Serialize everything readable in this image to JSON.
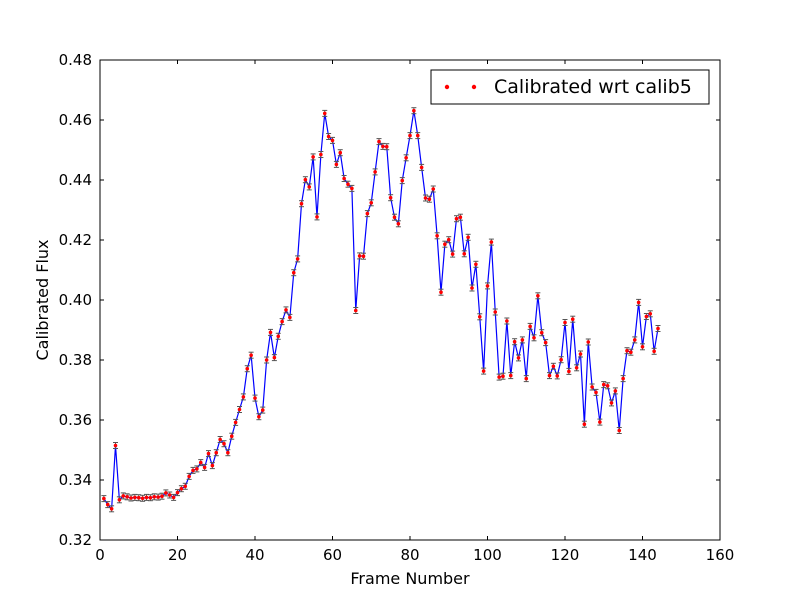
{
  "chart_data": {
    "type": "line",
    "title": "",
    "xlabel": "Frame Number",
    "ylabel": "Calibrated Flux",
    "xlim": [
      0,
      160
    ],
    "ylim": [
      0.32,
      0.48
    ],
    "xticks": [
      "0",
      "20",
      "40",
      "60",
      "80",
      "100",
      "120",
      "140",
      "160"
    ],
    "yticks": [
      "0.32",
      "0.34",
      "0.36",
      "0.38",
      "0.40",
      "0.42",
      "0.44",
      "0.46",
      "0.48"
    ],
    "grid": false,
    "legend_position": "top-right",
    "line_color": "#0000ff",
    "marker_color": "#ff0000",
    "errorbar_color": "#555555",
    "error_halfwidth": 0.001,
    "series": [
      {
        "name": "Calibrated wrt calib5",
        "x": [
          1,
          2,
          3,
          4,
          5,
          6,
          7,
          8,
          9,
          10,
          11,
          12,
          13,
          14,
          15,
          16,
          17,
          18,
          19,
          20,
          21,
          22,
          23,
          24,
          25,
          26,
          27,
          28,
          29,
          30,
          31,
          32,
          33,
          34,
          35,
          36,
          37,
          38,
          39,
          40,
          41,
          42,
          43,
          44,
          45,
          46,
          47,
          48,
          49,
          50,
          51,
          52,
          53,
          54,
          55,
          56,
          57,
          58,
          59,
          60,
          61,
          62,
          63,
          64,
          65,
          66,
          67,
          68,
          69,
          70,
          71,
          72,
          73,
          74,
          75,
          76,
          77,
          78,
          79,
          80,
          81,
          82,
          83,
          84,
          85,
          86,
          87,
          88,
          89,
          90,
          91,
          92,
          93,
          94,
          95,
          96,
          97,
          98,
          99,
          100,
          101,
          102,
          103,
          104,
          105,
          106,
          107,
          108,
          109,
          110,
          111,
          112,
          113,
          114,
          115,
          116,
          117,
          118,
          119,
          120,
          121,
          122,
          123,
          124,
          125,
          126,
          127,
          128,
          129,
          130,
          131,
          132,
          133,
          134,
          135,
          136,
          137,
          138,
          139,
          140,
          141,
          142,
          143,
          144
        ],
        "y": [
          0.3338,
          0.3318,
          0.3304,
          0.3515,
          0.3334,
          0.3347,
          0.3344,
          0.334,
          0.3342,
          0.3341,
          0.3339,
          0.3342,
          0.3341,
          0.3344,
          0.3343,
          0.3346,
          0.3357,
          0.335,
          0.3342,
          0.3358,
          0.3371,
          0.3379,
          0.3412,
          0.3432,
          0.3437,
          0.3458,
          0.3442,
          0.3488,
          0.3448,
          0.3491,
          0.3535,
          0.3521,
          0.3491,
          0.3546,
          0.3592,
          0.3635,
          0.3677,
          0.3771,
          0.3816,
          0.3673,
          0.3611,
          0.3633,
          0.38,
          0.3892,
          0.3808,
          0.3879,
          0.3928,
          0.3967,
          0.3942,
          0.4091,
          0.4137,
          0.4321,
          0.4401,
          0.4377,
          0.4477,
          0.4277,
          0.4485,
          0.4622,
          0.4545,
          0.4532,
          0.4452,
          0.4491,
          0.4405,
          0.4386,
          0.4372,
          0.3965,
          0.4147,
          0.4146,
          0.4288,
          0.4324,
          0.4427,
          0.4528,
          0.4512,
          0.4511,
          0.4341,
          0.4276,
          0.4254,
          0.4398,
          0.4474,
          0.4548,
          0.4631,
          0.4548,
          0.4442,
          0.434,
          0.4336,
          0.437,
          0.4214,
          0.4026,
          0.4186,
          0.4201,
          0.4153,
          0.4271,
          0.4276,
          0.4154,
          0.4209,
          0.404,
          0.4119,
          0.3944,
          0.3763,
          0.4047,
          0.4193,
          0.396,
          0.3743,
          0.3746,
          0.393,
          0.3748,
          0.3861,
          0.3807,
          0.3867,
          0.3738,
          0.3912,
          0.3874,
          0.4014,
          0.3891,
          0.3858,
          0.3748,
          0.3779,
          0.3747,
          0.3801,
          0.3925,
          0.3762,
          0.3936,
          0.3774,
          0.382,
          0.3586,
          0.386,
          0.371,
          0.3692,
          0.3593,
          0.3718,
          0.3714,
          0.3657,
          0.3697,
          0.3565,
          0.3738,
          0.3831,
          0.3826,
          0.3867,
          0.3992,
          0.3844,
          0.3945,
          0.3954,
          0.3829,
          0.3905
        ]
      }
    ]
  }
}
